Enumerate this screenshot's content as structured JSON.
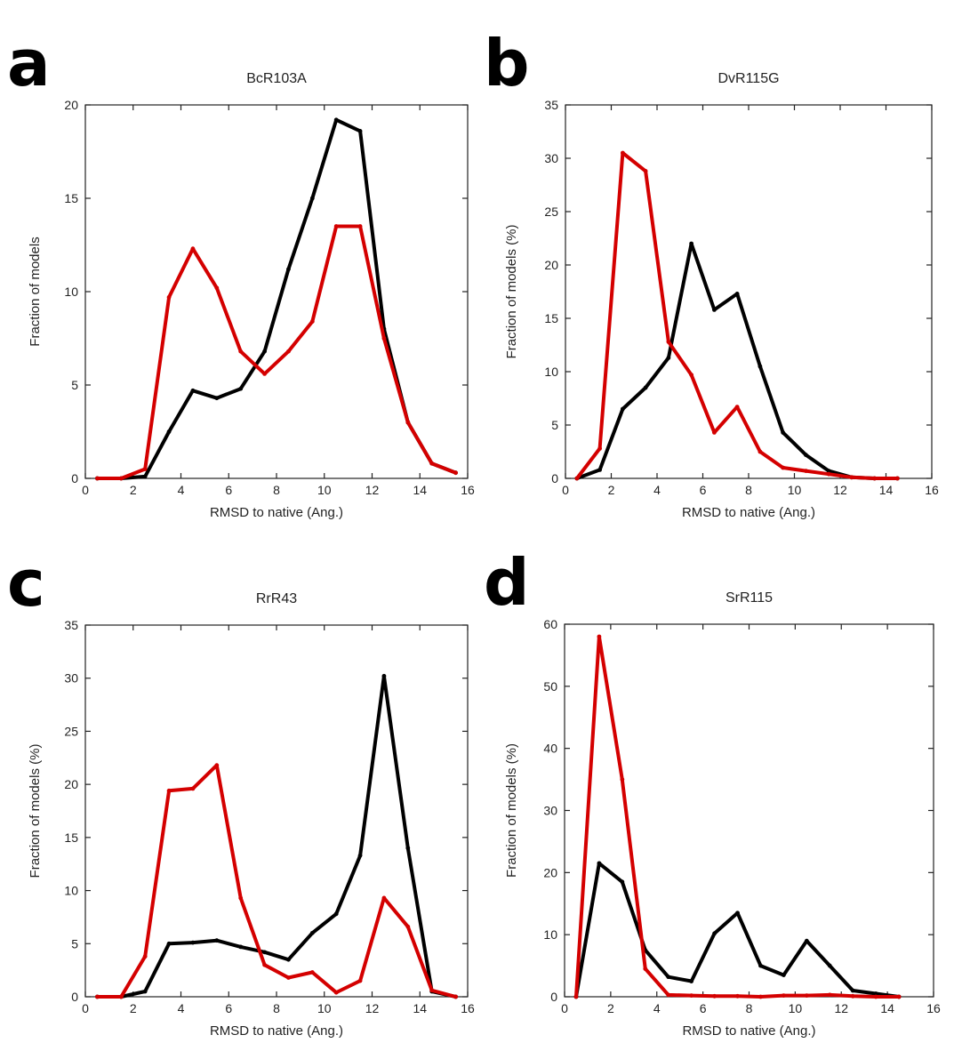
{
  "figure": {
    "xlabel": "RMSD to native (Ang.)"
  },
  "colors": {
    "black_series": "#000000",
    "red_series": "#d40000"
  },
  "chart_data": [
    {
      "panel": "a",
      "type": "line",
      "title": "BcR103A",
      "xlabel": "RMSD to native (Ang.)",
      "ylabel": "Fraction of models",
      "xlim": [
        0,
        16
      ],
      "ylim": [
        0,
        20
      ],
      "xticks": [
        0,
        2,
        4,
        6,
        8,
        10,
        12,
        14,
        16
      ],
      "yticks": [
        0,
        5,
        10,
        15,
        20
      ],
      "grid": false,
      "series": [
        {
          "color": "#000000",
          "x": [
            0.5,
            1.5,
            2.5,
            3.5,
            4.5,
            5.5,
            6.5,
            7.5,
            8.5,
            9.5,
            10.5,
            11.5,
            12.5,
            13.5,
            14.5,
            15.5
          ],
          "values": [
            0,
            0,
            0.1,
            2.5,
            4.7,
            4.3,
            4.8,
            6.8,
            11.2,
            15.0,
            19.2,
            18.6,
            8.0,
            3.0,
            0.8,
            0.3
          ]
        },
        {
          "color": "#d40000",
          "x": [
            0.5,
            1.5,
            2.5,
            3.5,
            4.5,
            5.5,
            6.5,
            7.5,
            8.5,
            9.5,
            10.5,
            11.5,
            12.5,
            13.5,
            14.5,
            15.5
          ],
          "values": [
            0,
            0,
            0.5,
            9.7,
            12.3,
            10.2,
            6.8,
            5.6,
            6.8,
            8.4,
            13.5,
            13.5,
            7.5,
            3.0,
            0.8,
            0.3
          ]
        }
      ]
    },
    {
      "panel": "b",
      "type": "line",
      "title": "DvR115G",
      "xlabel": "RMSD to native (Ang.)",
      "ylabel": "Fraction of models (%)",
      "xlim": [
        0,
        16
      ],
      "ylim": [
        0,
        35
      ],
      "xticks": [
        0,
        2,
        4,
        6,
        8,
        10,
        12,
        14,
        16
      ],
      "yticks": [
        0,
        5,
        10,
        15,
        20,
        25,
        30,
        35
      ],
      "grid": false,
      "series": [
        {
          "color": "#000000",
          "x": [
            0.5,
            1.5,
            2.5,
            3.5,
            4.5,
            5.5,
            6.5,
            7.5,
            8.5,
            9.5,
            10.5,
            11.5,
            12.5,
            13.5,
            14.5
          ],
          "values": [
            0,
            0.8,
            6.5,
            8.5,
            11.3,
            22.0,
            15.8,
            17.3,
            10.5,
            4.3,
            2.2,
            0.7,
            0.1,
            0,
            0
          ]
        },
        {
          "color": "#d40000",
          "x": [
            0.5,
            1.5,
            2.5,
            3.5,
            4.5,
            5.5,
            6.5,
            7.5,
            8.5,
            9.5,
            10.5,
            11.5,
            12.5,
            13.5,
            14.5
          ],
          "values": [
            0,
            2.8,
            30.5,
            28.8,
            12.8,
            9.7,
            4.3,
            6.7,
            2.5,
            1.0,
            0.7,
            0.4,
            0.1,
            0,
            0
          ]
        }
      ]
    },
    {
      "panel": "c",
      "type": "line",
      "title": "RrR43",
      "xlabel": "RMSD to native (Ang.)",
      "ylabel": "Fraction of models (%)",
      "xlim": [
        0,
        16
      ],
      "ylim": [
        0,
        35
      ],
      "xticks": [
        0,
        2,
        4,
        6,
        8,
        10,
        12,
        14,
        16
      ],
      "yticks": [
        0,
        5,
        10,
        15,
        20,
        25,
        30,
        35
      ],
      "grid": false,
      "series": [
        {
          "color": "#000000",
          "x": [
            0.5,
            1.5,
            2.5,
            3.5,
            4.5,
            5.5,
            6.5,
            7.5,
            8.5,
            9.5,
            10.5,
            11.5,
            12.5,
            13.5,
            14.5,
            15.5
          ],
          "values": [
            0,
            0,
            0.5,
            5.0,
            5.1,
            5.3,
            4.7,
            4.2,
            3.5,
            6.0,
            7.8,
            13.3,
            30.2,
            14.0,
            0.5,
            0
          ]
        },
        {
          "color": "#d40000",
          "x": [
            0.5,
            1.5,
            2.5,
            3.5,
            4.5,
            5.5,
            6.5,
            7.5,
            8.5,
            9.5,
            10.5,
            11.5,
            12.5,
            13.5,
            14.5,
            15.5
          ],
          "values": [
            0,
            0,
            3.8,
            19.4,
            19.6,
            21.8,
            9.3,
            3.0,
            1.8,
            2.3,
            0.4,
            1.5,
            9.3,
            6.6,
            0.6,
            0
          ]
        }
      ]
    },
    {
      "panel": "d",
      "type": "line",
      "title": "SrR115",
      "xlabel": "RMSD to native (Ang.)",
      "ylabel": "Fraction of models (%)",
      "xlim": [
        0,
        16
      ],
      "ylim": [
        0,
        60
      ],
      "xticks": [
        0,
        2,
        4,
        6,
        8,
        10,
        12,
        14,
        16
      ],
      "yticks": [
        0,
        10,
        20,
        30,
        40,
        50,
        60
      ],
      "grid": false,
      "series": [
        {
          "color": "#000000",
          "x": [
            0.5,
            1.5,
            2.5,
            3.5,
            4.5,
            5.5,
            6.5,
            7.5,
            8.5,
            9.5,
            10.5,
            11.5,
            12.5,
            13.5,
            14.5
          ],
          "values": [
            0,
            21.5,
            18.5,
            7.5,
            3.2,
            2.5,
            10.2,
            13.5,
            5.0,
            3.5,
            9.0,
            5.0,
            1.0,
            0.5,
            0
          ]
        },
        {
          "color": "#d40000",
          "x": [
            0.5,
            1.5,
            2.5,
            3.5,
            4.5,
            5.5,
            6.5,
            7.5,
            8.5,
            9.5,
            10.5,
            11.5,
            12.5,
            13.5,
            14.5
          ],
          "values": [
            0,
            58.0,
            35.0,
            4.5,
            0.3,
            0.2,
            0.1,
            0.1,
            0,
            0.2,
            0.2,
            0.3,
            0.1,
            0,
            0
          ]
        }
      ]
    }
  ]
}
